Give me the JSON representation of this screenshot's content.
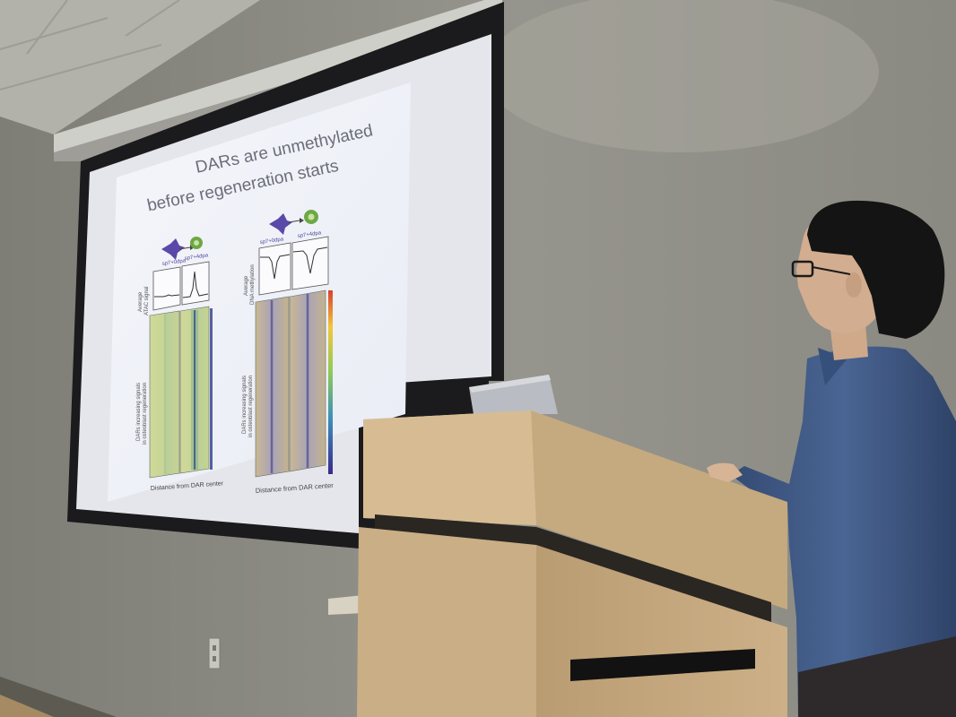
{
  "slide": {
    "title_line1": "DARs are unmethylated",
    "title_line2": "before regeneration starts",
    "left_panel": {
      "stage_before": "sp7+0dpa",
      "stage_after": "sp7+4dpa",
      "profile_ylabel_line1": "Average",
      "profile_ylabel_line2": "ATAC signal",
      "heatmap_ylabel_line1": "DARs increasing signals",
      "heatmap_ylabel_line2": "in osteoblast regeneration",
      "xlabel": "Distance from DAR center"
    },
    "right_panel": {
      "stage_before": "sp7+0dpa",
      "stage_after": "sp7+4dpa",
      "profile_ylabel_line1": "Average",
      "profile_ylabel_line2": "DNA methylation",
      "heatmap_ylabel_line1": "DARs increasing signals",
      "heatmap_ylabel_line2": "in osteoblast regeneration",
      "xlabel": "Distance from DAR center"
    }
  },
  "colors": {
    "wall": "#8f8e86",
    "ceiling": "#b9b8b0",
    "screen_frame": "#1c1c1e",
    "screen_surface": "#e6e8ee",
    "slide_bg": "#f3f5fb",
    "podium_wood": "#c8ad85",
    "shirt": "#3e567f",
    "hair": "#141414"
  }
}
